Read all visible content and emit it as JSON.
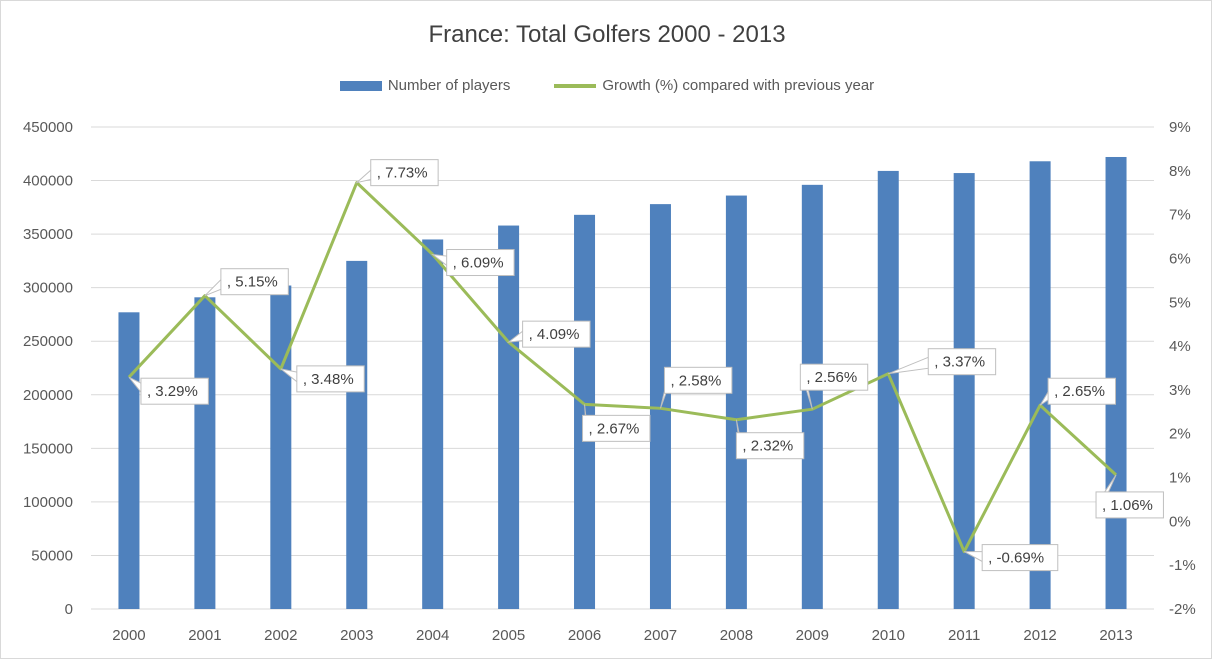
{
  "chart_data": {
    "type": "bar",
    "title": "France: Total Golfers 2000 - 2013",
    "categories": [
      "2000",
      "2001",
      "2002",
      "2003",
      "2004",
      "2005",
      "2006",
      "2007",
      "2008",
      "2009",
      "2010",
      "2011",
      "2012",
      "2013"
    ],
    "series": [
      {
        "name": "Number of players",
        "type": "bar",
        "axis": "left",
        "color": "#4f81bd",
        "values": [
          277000,
          291000,
          302000,
          325000,
          345000,
          358000,
          368000,
          378000,
          386000,
          396000,
          409000,
          407000,
          418000,
          422000
        ]
      },
      {
        "name": "Growth (%) compared with previous year",
        "type": "line",
        "axis": "right",
        "color": "#9bbb59",
        "values": [
          3.29,
          5.15,
          3.48,
          7.73,
          6.09,
          4.09,
          2.67,
          2.58,
          2.32,
          2.56,
          3.37,
          -0.69,
          2.65,
          1.06
        ],
        "labels": [
          ", 3.29%",
          ", 5.15%",
          ", 3.48%",
          ", 7.73%",
          ", 6.09%",
          ", 4.09%",
          ", 2.67%",
          ", 2.58%",
          ", 2.32%",
          ", 2.56%",
          ", 3.37%",
          ", -0.69%",
          ", 2.65%",
          ", 1.06%"
        ]
      }
    ],
    "y_left": {
      "min": 0,
      "max": 450000,
      "ticks": [
        "0",
        "50000",
        "100000",
        "150000",
        "200000",
        "250000",
        "300000",
        "350000",
        "400000",
        "450000"
      ]
    },
    "y_right": {
      "min": -2,
      "max": 9,
      "ticks": [
        "-2%",
        "-1%",
        "0%",
        "1%",
        "2%",
        "3%",
        "4%",
        "5%",
        "6%",
        "7%",
        "8%",
        "9%"
      ]
    },
    "grid": true,
    "legend_position": "top"
  }
}
